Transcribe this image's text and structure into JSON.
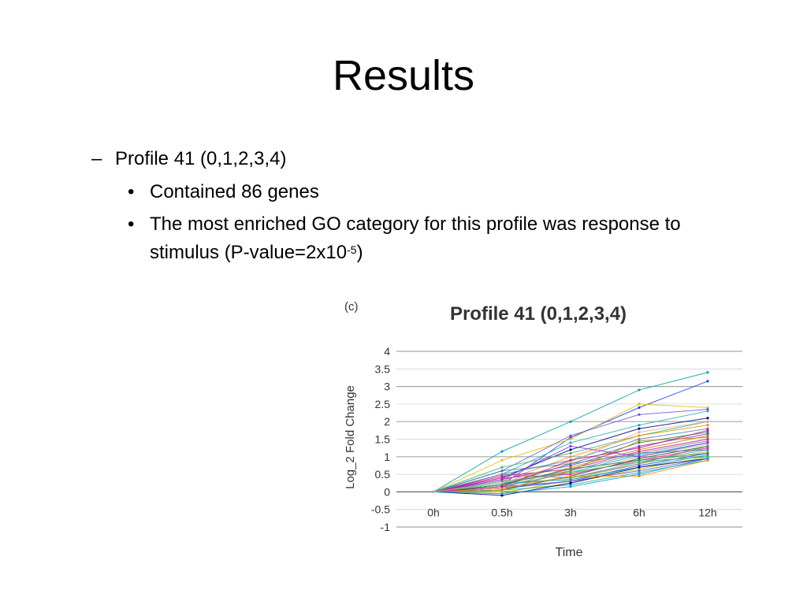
{
  "slide": {
    "title": "Results",
    "bullets": {
      "dash": "–",
      "dot": "•",
      "profile": "Profile 41 (0,1,2,3,4)",
      "genes": "Contained 86 genes",
      "go_line1": "The most enriched GO category for this profile was response to",
      "go_line2_pre": "stimulus (P-value=2x10",
      "go_line2_sup": "-5",
      "go_line2_post": ")"
    }
  },
  "colors": {
    "gridline": "#9a9a9a",
    "axis": "#555555",
    "series_palette": [
      "#1f3cff",
      "#00a0a0",
      "#e0c000",
      "#6a5acd",
      "#20b2aa",
      "#000080",
      "#3cb371",
      "#ff8c00",
      "#4682b4",
      "#2e8b57",
      "#8a2be2",
      "#b8860b",
      "#c71585",
      "#708090",
      "#0aa0e0",
      "#d2b48c",
      "#006400",
      "#ff1493",
      "#5f9ea0",
      "#9acd32"
    ]
  },
  "chart_data": {
    "type": "line",
    "panel_label": "(c)",
    "title": "Profile 41 (0,1,2,3,4)",
    "xlabel": "Time",
    "ylabel": "Log_2 Fold Change",
    "categories": [
      "0h",
      "0.5h",
      "3h",
      "6h",
      "12h"
    ],
    "yticks": [
      "4",
      "3.5",
      "3",
      "2.5",
      "2",
      "1.5",
      "1",
      "0.5",
      "0",
      "-0.5",
      "-1"
    ],
    "ylim": [
      -1,
      4
    ],
    "grid": true,
    "legend": "none",
    "gene_count": 86,
    "series": [
      {
        "values": [
          0,
          0.2,
          1.55,
          2.4,
          3.15
        ]
      },
      {
        "values": [
          0,
          1.15,
          2.0,
          2.9,
          3.4
        ]
      },
      {
        "values": [
          0,
          0.9,
          1.5,
          2.5,
          2.4
        ]
      },
      {
        "values": [
          0,
          0.6,
          1.6,
          2.2,
          2.35
        ]
      },
      {
        "values": [
          0,
          0.5,
          1.4,
          1.9,
          2.3
        ]
      },
      {
        "values": [
          0,
          0.4,
          1.2,
          1.8,
          2.1
        ]
      },
      {
        "values": [
          0,
          0.7,
          1.1,
          1.6,
          2.0
        ]
      },
      {
        "values": [
          0,
          0.3,
          1.0,
          1.6,
          1.9
        ]
      },
      {
        "values": [
          0,
          0.5,
          0.9,
          1.5,
          1.8
        ]
      },
      {
        "values": [
          0,
          0.2,
          0.8,
          1.4,
          1.7
        ]
      },
      {
        "values": [
          0,
          0.35,
          0.75,
          1.3,
          1.65
        ]
      },
      {
        "values": [
          0,
          0.1,
          0.7,
          1.2,
          1.6
        ]
      },
      {
        "values": [
          0,
          0.45,
          0.65,
          1.15,
          1.5
        ]
      },
      {
        "values": [
          0,
          0.25,
          0.6,
          1.1,
          1.45
        ]
      },
      {
        "values": [
          0,
          0.15,
          0.55,
          1.05,
          1.4
        ]
      },
      {
        "values": [
          0,
          0.3,
          0.5,
          1.0,
          1.35
        ]
      },
      {
        "values": [
          0,
          0.05,
          0.45,
          0.95,
          1.3
        ]
      },
      {
        "values": [
          0,
          0.4,
          0.5,
          0.9,
          1.25
        ]
      },
      {
        "values": [
          0,
          0.2,
          0.4,
          0.85,
          1.2
        ]
      },
      {
        "values": [
          0,
          -0.05,
          0.35,
          0.8,
          1.15
        ]
      },
      {
        "values": [
          0,
          0.1,
          0.3,
          0.75,
          1.1
        ]
      },
      {
        "values": [
          0,
          0.25,
          0.35,
          0.7,
          1.05
        ]
      },
      {
        "values": [
          0,
          0.0,
          0.25,
          0.65,
          1.0
        ]
      },
      {
        "values": [
          0,
          0.15,
          0.3,
          0.6,
          0.95
        ]
      },
      {
        "values": [
          0,
          0.05,
          0.2,
          0.55,
          0.9
        ]
      },
      {
        "values": [
          0,
          -0.1,
          0.25,
          0.7,
          0.95
        ]
      },
      {
        "values": [
          0,
          0.3,
          0.55,
          0.85,
          1.0
        ]
      },
      {
        "values": [
          0,
          0.1,
          0.45,
          0.45,
          0.9
        ]
      },
      {
        "values": [
          0,
          0.6,
          0.8,
          1.1,
          1.2
        ]
      },
      {
        "values": [
          0,
          0.2,
          0.65,
          0.9,
          1.1
        ]
      },
      {
        "values": [
          0,
          0.35,
          1.3,
          1.0,
          1.4
        ]
      },
      {
        "values": [
          0,
          0.05,
          0.6,
          1.45,
          1.55
        ]
      },
      {
        "values": [
          0,
          0.15,
          0.9,
          1.25,
          1.75
        ]
      },
      {
        "values": [
          0,
          0.5,
          0.4,
          0.8,
          1.3
        ]
      },
      {
        "values": [
          0,
          -0.05,
          0.15,
          0.5,
          0.95
        ]
      },
      {
        "values": [
          0,
          0.25,
          0.85,
          1.7,
          2.0
        ]
      }
    ]
  }
}
